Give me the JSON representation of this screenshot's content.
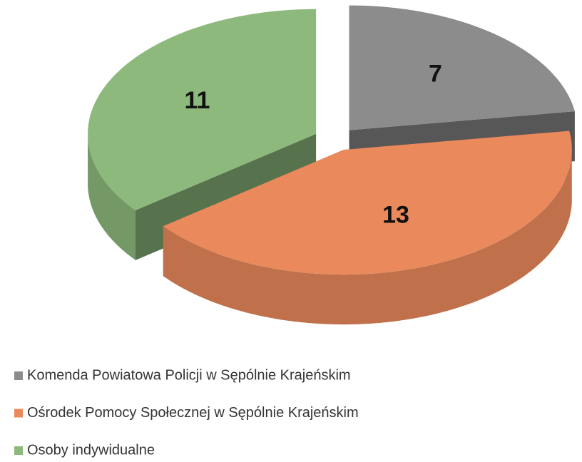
{
  "chart_data": {
    "type": "pie",
    "categories": [
      "Komenda Powiatowa Policji w Sępólnie Krajeńskim",
      "Ośrodek Pomocy Społecznej w Sępólnie Krajeńskim",
      "Osoby indywidualne"
    ],
    "values": [
      7,
      13,
      11
    ],
    "colors": [
      "#8c8c8c",
      "#ea8a5c",
      "#8dba7c"
    ],
    "legend": "bottom"
  }
}
